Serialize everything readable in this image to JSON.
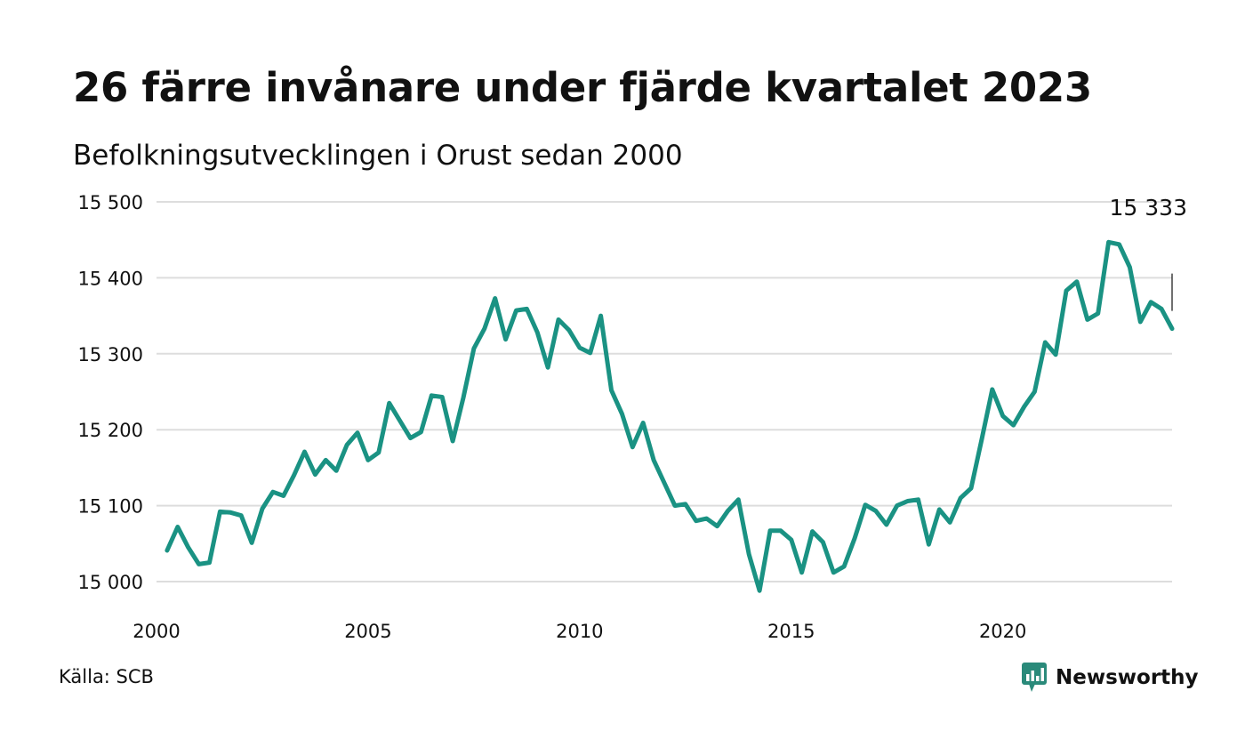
{
  "title": "26 färre invånare under fjärde kvartalet 2023",
  "subtitle": "Befolkningsutvecklingen i Orust sedan 2000",
  "source": "Källa: SCB",
  "brand": {
    "name": "Newsworthy",
    "logo_icon": "bar-chart-speech-bubble-icon"
  },
  "colors": {
    "line": "#1a9283",
    "brand": "#2a8a7a",
    "grid": "#dddddd",
    "text": "#111111"
  },
  "chart_data": {
    "type": "line",
    "title": "26 färre invånare under fjärde kvartalet 2023",
    "subtitle": "Befolkningsutvecklingen i Orust sedan 2000",
    "xlabel": "",
    "ylabel": "",
    "x_ticks": [
      2000,
      2005,
      2010,
      2015,
      2020
    ],
    "x_tick_labels": [
      "2000",
      "2005",
      "2010",
      "2015",
      "2020"
    ],
    "y_ticks": [
      15000,
      15100,
      15200,
      15300,
      15400,
      15500
    ],
    "y_tick_labels": [
      "15 000",
      "15 100",
      "15 200",
      "15 300",
      "15 400",
      "15 500"
    ],
    "ylim": [
      15000,
      15500
    ],
    "xlim": [
      2000,
      2024
    ],
    "grid": true,
    "legend": "none",
    "annotation": {
      "text": "15 333",
      "x": 2024,
      "y": 15333
    },
    "series": [
      {
        "x": [
          "2000 K1",
          "2000 K2",
          "2000 K3",
          "2000 K4",
          "2001 K1",
          "2001 K2",
          "2001 K3",
          "2001 K4",
          "2002 K1",
          "2002 K2",
          "2002 K3",
          "2002 K4",
          "2003 K1",
          "2003 K2",
          "2003 K3",
          "2003 K4",
          "2004 K1",
          "2004 K2",
          "2004 K3",
          "2004 K4",
          "2005 K1",
          "2005 K2",
          "2005 K3",
          "2005 K4",
          "2006 K1",
          "2006 K2",
          "2006 K3",
          "2006 K4",
          "2007 K1",
          "2007 K2",
          "2007 K3",
          "2007 K4",
          "2008 K1",
          "2008 K2",
          "2008 K3",
          "2008 K4",
          "2009 K1",
          "2009 K2",
          "2009 K3",
          "2009 K4",
          "2010 K1",
          "2010 K2",
          "2010 K3",
          "2010 K4",
          "2011 K1",
          "2011 K2",
          "2011 K3",
          "2011 K4",
          "2012 K1",
          "2012 K2",
          "2012 K3",
          "2012 K4",
          "2013 K1",
          "2013 K2",
          "2013 K3",
          "2013 K4",
          "2014 K1",
          "2014 K2",
          "2014 K3",
          "2014 K4",
          "2015 K1",
          "2015 K2",
          "2015 K3",
          "2015 K4",
          "2016 K1",
          "2016 K2",
          "2016 K3",
          "2016 K4",
          "2017 K1",
          "2017 K2",
          "2017 K3",
          "2017 K4",
          "2018 K1",
          "2018 K2",
          "2018 K3",
          "2018 K4",
          "2019 K1",
          "2019 K2",
          "2019 K3",
          "2019 K4",
          "2020 K1",
          "2020 K2",
          "2020 K3",
          "2020 K4",
          "2021 K1",
          "2021 K2",
          "2021 K3",
          "2021 K4",
          "2022 K1",
          "2022 K2",
          "2022 K3",
          "2022 K4",
          "2023 K1",
          "2023 K2",
          "2023 K3",
          "2023 K4"
        ],
        "values": [
          15041,
          15072,
          15045,
          15023,
          15025,
          15092,
          15091,
          15087,
          15051,
          15096,
          15118,
          15113,
          15140,
          15171,
          15141,
          15160,
          15146,
          15180,
          15196,
          15160,
          15170,
          15235,
          15212,
          15189,
          15197,
          15245,
          15243,
          15185,
          15242,
          15307,
          15333,
          15373,
          15319,
          15357,
          15359,
          15328,
          15282,
          15345,
          15331,
          15308,
          15301,
          15350,
          15252,
          15221,
          15177,
          15209,
          15160,
          15130,
          15100,
          15102,
          15080,
          15083,
          15073,
          15093,
          15108,
          15036,
          14988,
          15067,
          15067,
          15055,
          15012,
          15066,
          15052,
          15012,
          15020,
          15057,
          15101,
          15093,
          15075,
          15100,
          15106,
          15108,
          15049,
          15095,
          15078,
          15110,
          15123,
          15187,
          15253,
          15218,
          15206,
          15230,
          15250,
          15315,
          15299,
          15383,
          15395,
          15345,
          15353,
          15447,
          15444,
          15414,
          15342,
          15368,
          15359,
          15333
        ]
      }
    ]
  }
}
